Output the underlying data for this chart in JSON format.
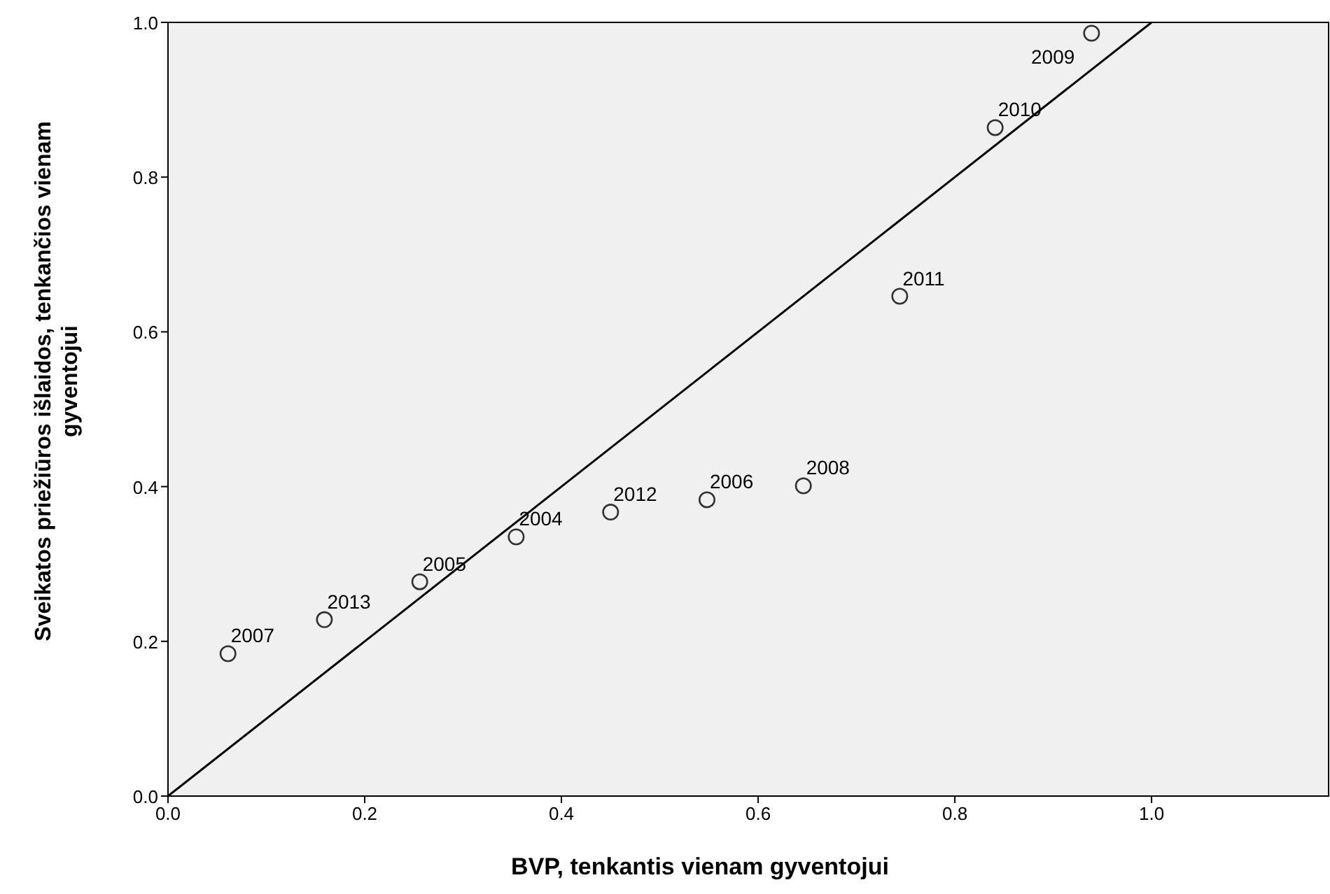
{
  "chart_data": {
    "type": "scatter",
    "xlabel": "BVP, tenkantis vienam gyventojui",
    "ylabel": "Sveikatos priežiūros išlaidos, tenkančios vienam gyventojui",
    "xlim": [
      0,
      1.18
    ],
    "ylim": [
      0,
      1
    ],
    "xticks": [
      {
        "value": 0,
        "label": "0.0"
      },
      {
        "value": 0.2,
        "label": "0.2"
      },
      {
        "value": 0.4,
        "label": "0.4"
      },
      {
        "value": 0.6,
        "label": "0.6"
      },
      {
        "value": 0.8,
        "label": "0.8"
      },
      {
        "value": 1,
        "label": "1.0"
      }
    ],
    "yticks": [
      {
        "value": 0,
        "label": "0.0"
      },
      {
        "value": 0.2,
        "label": "0.2"
      },
      {
        "value": 0.4,
        "label": "0.4"
      },
      {
        "value": 0.6,
        "label": "0.6"
      },
      {
        "value": 0.8,
        "label": "0.8"
      },
      {
        "value": 1,
        "label": "1.0"
      }
    ],
    "grid": false,
    "series": [
      {
        "marker": "circle",
        "color": "#333333",
        "x": [
          0.061,
          0.159,
          0.256,
          0.354,
          0.45,
          0.548,
          0.646,
          0.744,
          0.841,
          0.939
        ],
        "values": [
          0.184,
          0.228,
          0.277,
          0.335,
          0.367,
          0.383,
          0.401,
          0.646,
          0.864,
          0.986
        ]
      },
      {
        "type": "line",
        "marker": "none",
        "color": "#000000",
        "x": [
          0,
          1
        ],
        "values": [
          0,
          1
        ]
      }
    ],
    "annotations": [
      {
        "text": "2007",
        "x": 0.061,
        "y": 0.184
      },
      {
        "text": "2013",
        "x": 0.159,
        "y": 0.228
      },
      {
        "text": "2005",
        "x": 0.256,
        "y": 0.277
      },
      {
        "text": "2004",
        "x": 0.354,
        "y": 0.335
      },
      {
        "text": "2012",
        "x": 0.45,
        "y": 0.367
      },
      {
        "text": "2006",
        "x": 0.548,
        "y": 0.383
      },
      {
        "text": "2008",
        "x": 0.646,
        "y": 0.401
      },
      {
        "text": "2011",
        "x": 0.744,
        "y": 0.646
      },
      {
        "text": "2010",
        "x": 0.841,
        "y": 0.864
      },
      {
        "text": "2009",
        "x": 0.939,
        "y": 0.986
      }
    ]
  }
}
